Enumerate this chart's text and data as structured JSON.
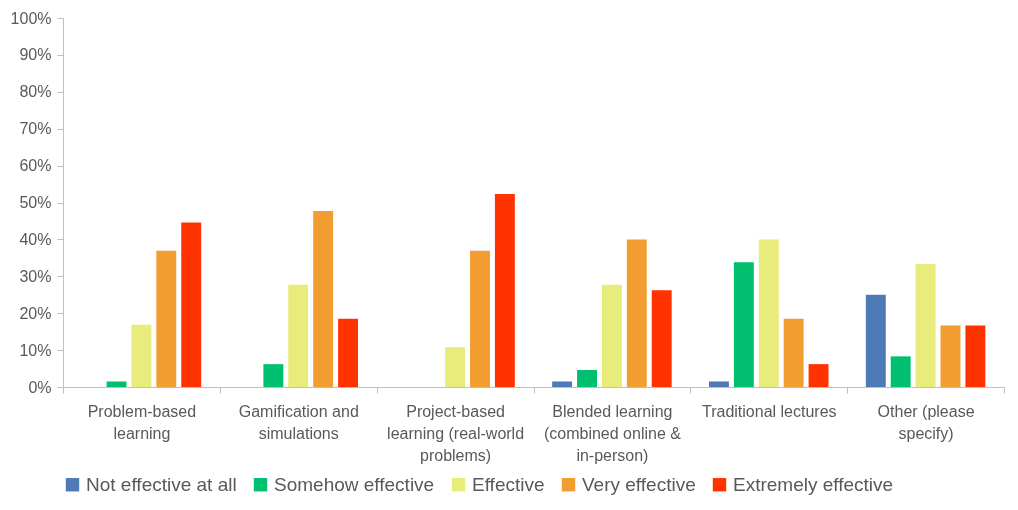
{
  "chart_data": {
    "type": "bar",
    "categories": [
      "Problem-based learning",
      "Gamification and simulations",
      "Project-based learning (real-world problems)",
      "Blended learning (combined online & in-person)",
      "Traditional lectures",
      "Other (please specify)"
    ],
    "series": [
      {
        "name": "Not effective at all",
        "color": "#4e7ab8",
        "values": [
          0,
          0,
          0,
          1.5,
          1.5,
          25
        ]
      },
      {
        "name": "Somehow effective",
        "color": "#00bf6f",
        "values": [
          1.5,
          6.2,
          0,
          4.6,
          33.8,
          8.3
        ]
      },
      {
        "name": "Effective",
        "color": "#e8ec7a",
        "values": [
          16.9,
          27.7,
          10.8,
          27.7,
          40,
          33.3
        ]
      },
      {
        "name": "Very effective",
        "color": "#f29d30",
        "values": [
          36.9,
          47.7,
          36.9,
          40,
          18.5,
          16.7
        ]
      },
      {
        "name": "Extremely effective",
        "color": "#ff3300",
        "values": [
          44.6,
          18.5,
          52.3,
          26.2,
          6.2,
          16.7
        ]
      }
    ],
    "ylim": [
      0,
      100
    ],
    "yticks": [
      {
        "value": 0,
        "label": "0%"
      },
      {
        "value": 10,
        "label": "10%"
      },
      {
        "value": 20,
        "label": "20%"
      },
      {
        "value": 30,
        "label": "30%"
      },
      {
        "value": 40,
        "label": "40%"
      },
      {
        "value": 50,
        "label": "50%"
      },
      {
        "value": 60,
        "label": "60%"
      },
      {
        "value": 70,
        "label": "70%"
      },
      {
        "value": 80,
        "label": "80%"
      },
      {
        "value": 90,
        "label": "90%"
      },
      {
        "value": 100,
        "label": "100%"
      }
    ],
    "grid": false,
    "legend": "bottom"
  }
}
